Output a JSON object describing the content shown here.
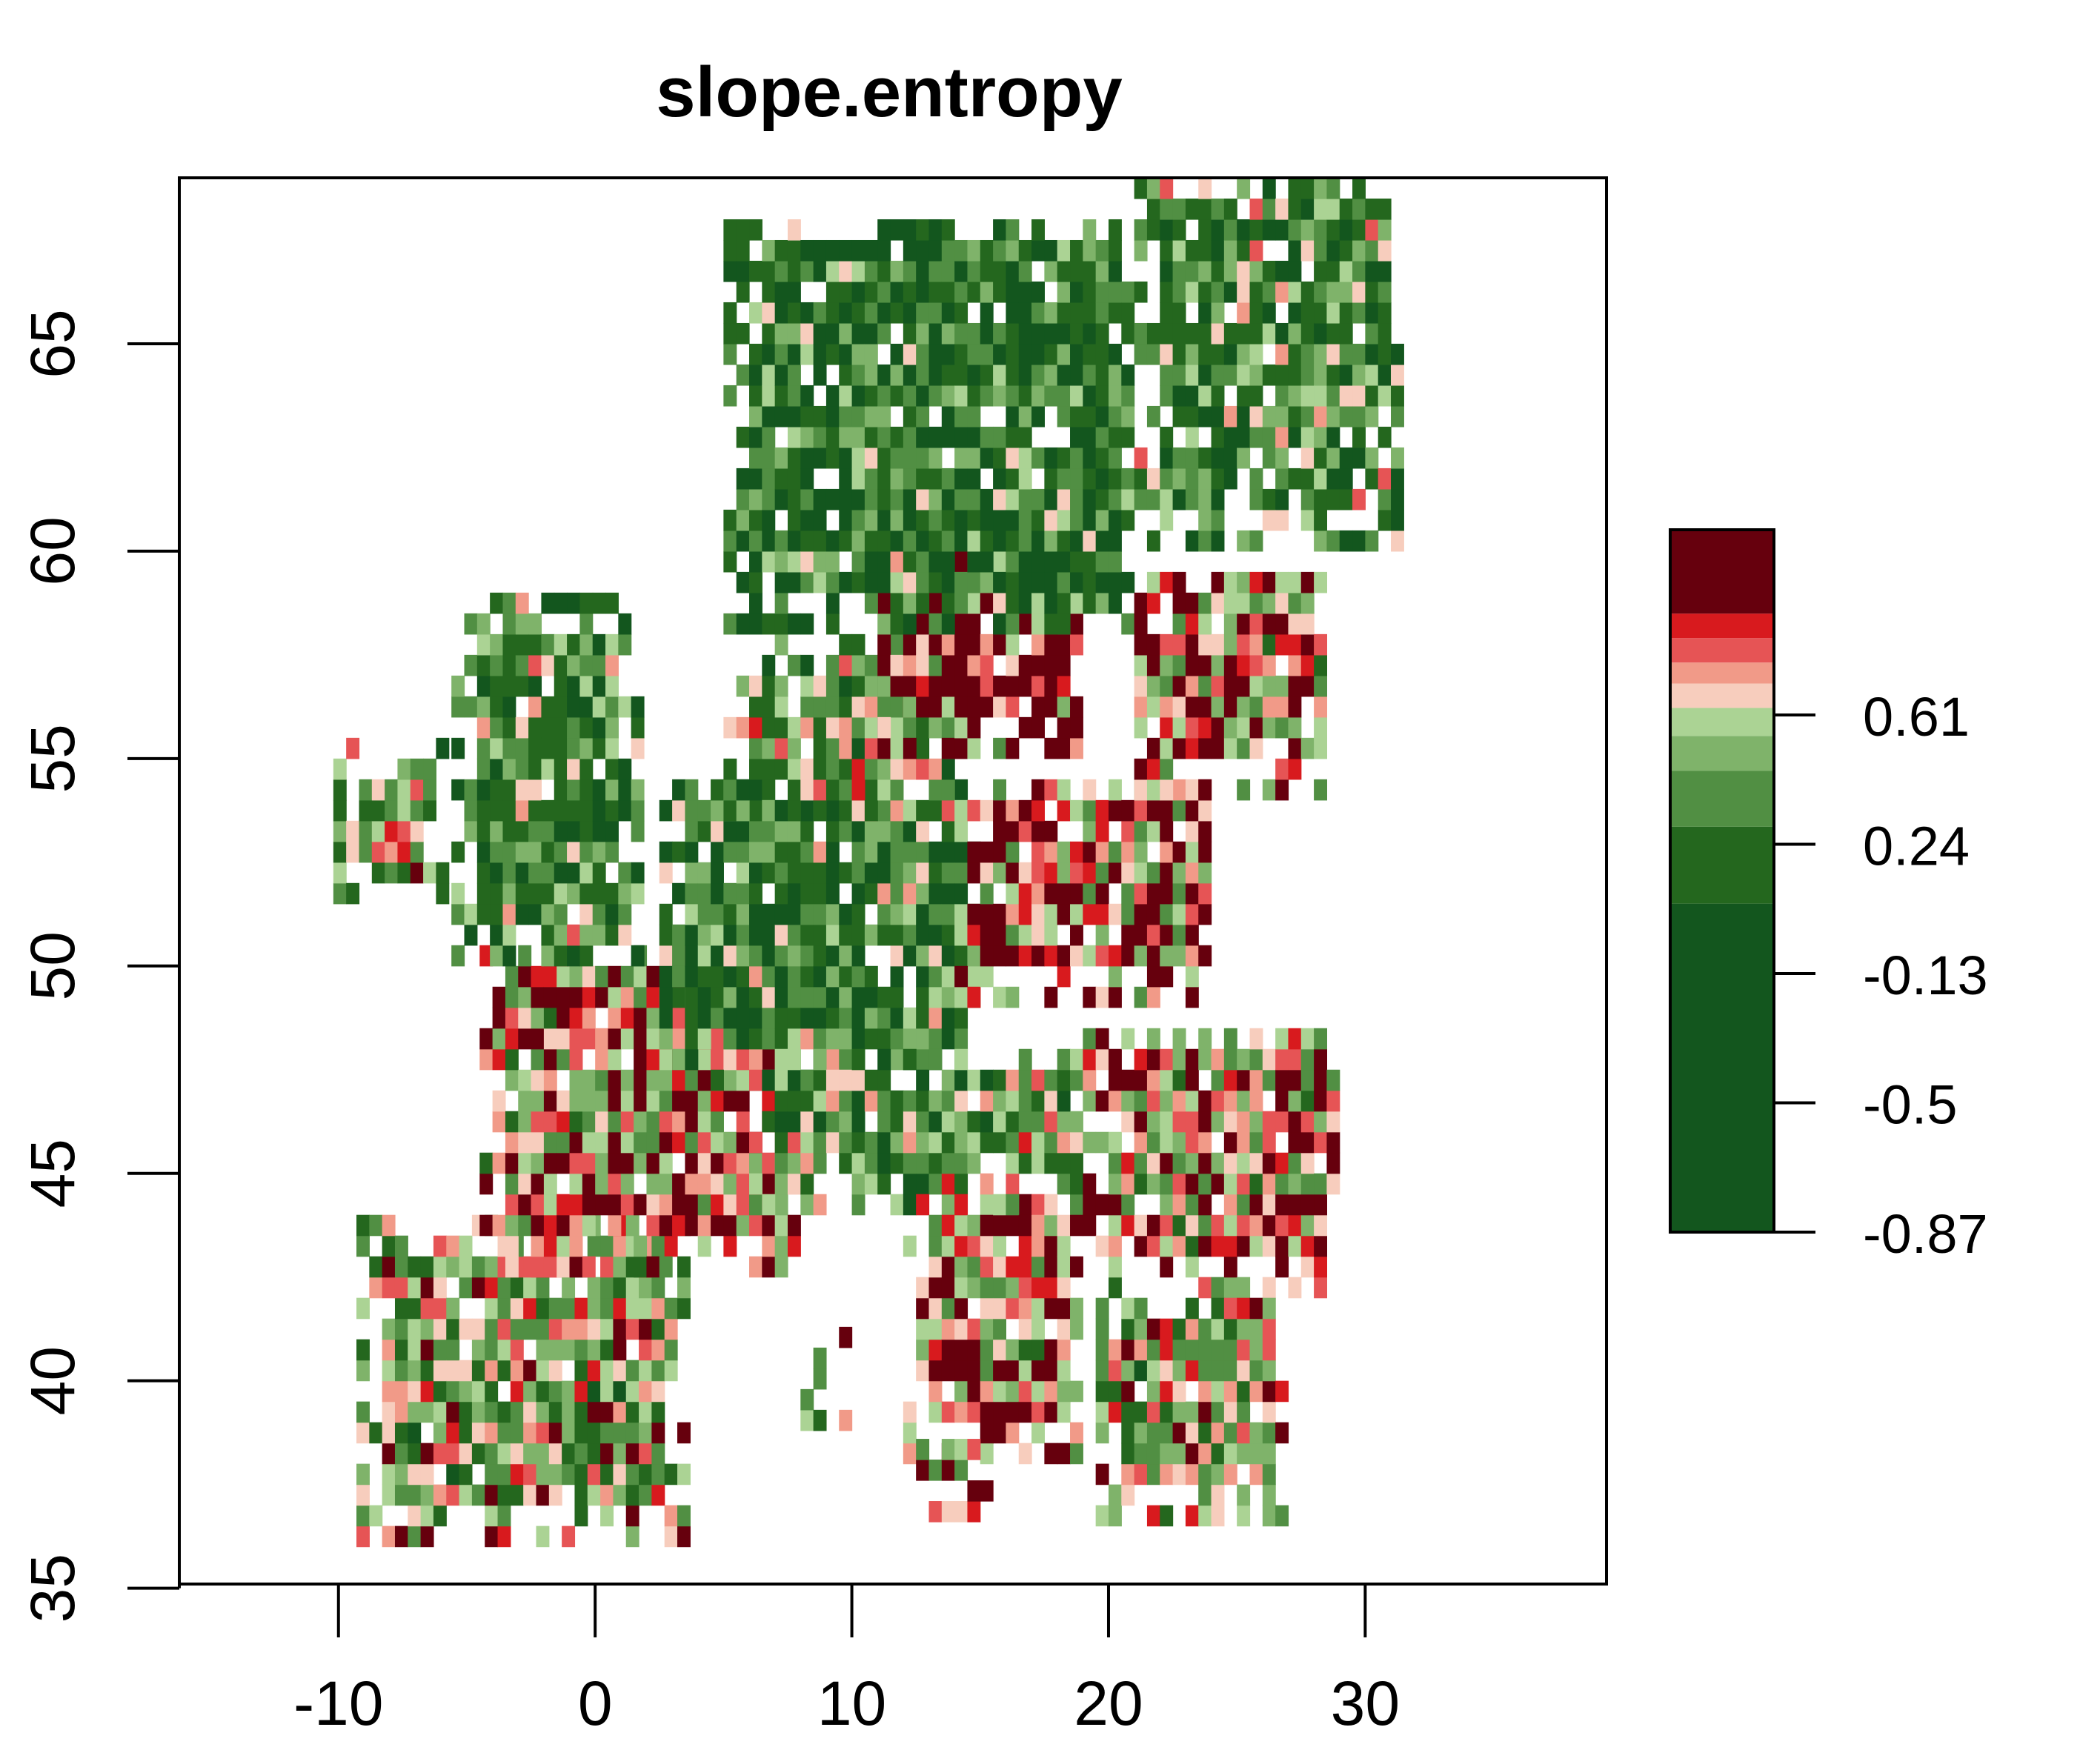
{
  "chart_data": {
    "type": "heatmap",
    "title": "slope.entropy",
    "xlabel": "",
    "ylabel": "",
    "x_ticks": [
      -10,
      0,
      10,
      20,
      30
    ],
    "y_ticks": [
      35,
      40,
      45,
      50,
      55,
      60,
      65
    ],
    "xlim": [
      -16.2,
      39.4
    ],
    "ylim": [
      35.1,
      69.0
    ],
    "legend": {
      "placement": "right",
      "tick_labels": [
        "0.61",
        "0.24",
        "-0.13",
        "-0.5",
        "-0.87"
      ],
      "tick_values": [
        0.61,
        0.24,
        -0.13,
        -0.5,
        -0.87
      ],
      "value_range": [
        -0.87,
        1.14
      ],
      "bands": [
        {
          "from": -0.87,
          "to": 0.07,
          "color": "#13561e"
        },
        {
          "from": 0.07,
          "to": 0.29,
          "color": "#24671e"
        },
        {
          "from": 0.29,
          "to": 0.45,
          "color": "#518f43"
        },
        {
          "from": 0.45,
          "to": 0.55,
          "color": "#7fb36a"
        },
        {
          "from": 0.55,
          "to": 0.63,
          "color": "#abd394"
        },
        {
          "from": 0.63,
          "to": 0.7,
          "color": "#f7cdbd"
        },
        {
          "from": 0.7,
          "to": 0.76,
          "color": "#f19a88"
        },
        {
          "from": 0.76,
          "to": 0.83,
          "color": "#e65455"
        },
        {
          "from": 0.83,
          "to": 0.9,
          "color": "#d81a1e"
        },
        {
          "from": 0.9,
          "to": 1.14,
          "color": "#66000d"
        }
      ]
    },
    "grid": false,
    "regions": [
      {
        "lon_min": -9.3,
        "lon_max": 3.2,
        "lat_min": 36.0,
        "lat_max": 43.7,
        "mean": 0.55
      },
      {
        "lon_min": -4.5,
        "lon_max": 8.0,
        "lat_min": 42.5,
        "lat_max": 50.5,
        "mean": 0.74
      },
      {
        "lon_min": -5.6,
        "lon_max": 1.6,
        "lat_min": 50.0,
        "lat_max": 58.6,
        "mean": 0.3
      },
      {
        "lon_min": -10.2,
        "lon_max": -6.0,
        "lat_min": 51.5,
        "lat_max": 55.3,
        "mean": 0.5
      },
      {
        "lon_min": 2.5,
        "lon_max": 15.0,
        "lat_min": 47.0,
        "lat_max": 54.5,
        "mean": 0.25
      },
      {
        "lon_min": 5.0,
        "lon_max": 14.0,
        "lat_min": 53.5,
        "lat_max": 57.8,
        "mean": 0.45
      },
      {
        "lon_min": 14.0,
        "lon_max": 24.0,
        "lat_min": 49.0,
        "lat_max": 54.5,
        "mean": 0.78
      },
      {
        "lon_min": 6.0,
        "lon_max": 19.0,
        "lat_min": 44.0,
        "lat_max": 48.0,
        "mean": 0.4
      },
      {
        "lon_min": 19.0,
        "lon_max": 29.0,
        "lat_min": 42.0,
        "lat_max": 48.5,
        "mean": 0.72
      },
      {
        "lon_min": 12.0,
        "lon_max": 19.0,
        "lat_min": 38.0,
        "lat_max": 44.5,
        "mean": 0.78
      },
      {
        "lon_min": 19.5,
        "lon_max": 27.0,
        "lat_min": 36.5,
        "lat_max": 42.0,
        "mean": 0.55
      },
      {
        "lon_min": 11.0,
        "lon_max": 19.0,
        "lat_min": 55.0,
        "lat_max": 61.0,
        "mean": 0.88
      },
      {
        "lon_min": 5.0,
        "lon_max": 21.0,
        "lat_min": 58.0,
        "lat_max": 68.0,
        "mean": 0.2
      },
      {
        "lon_min": 21.0,
        "lon_max": 31.5,
        "lat_min": 60.0,
        "lat_max": 69.0,
        "mean": 0.32
      },
      {
        "lon_min": 21.0,
        "lon_max": 28.5,
        "lat_min": 54.0,
        "lat_max": 59.5,
        "mean": 0.75
      },
      {
        "lon_min": 8.0,
        "lon_max": 9.8,
        "lat_min": 38.8,
        "lat_max": 41.3,
        "mean": 0.6
      },
      {
        "lon_min": 12.5,
        "lon_max": 15.5,
        "lat_min": 36.6,
        "lat_max": 38.3,
        "mean": 0.65
      }
    ]
  }
}
